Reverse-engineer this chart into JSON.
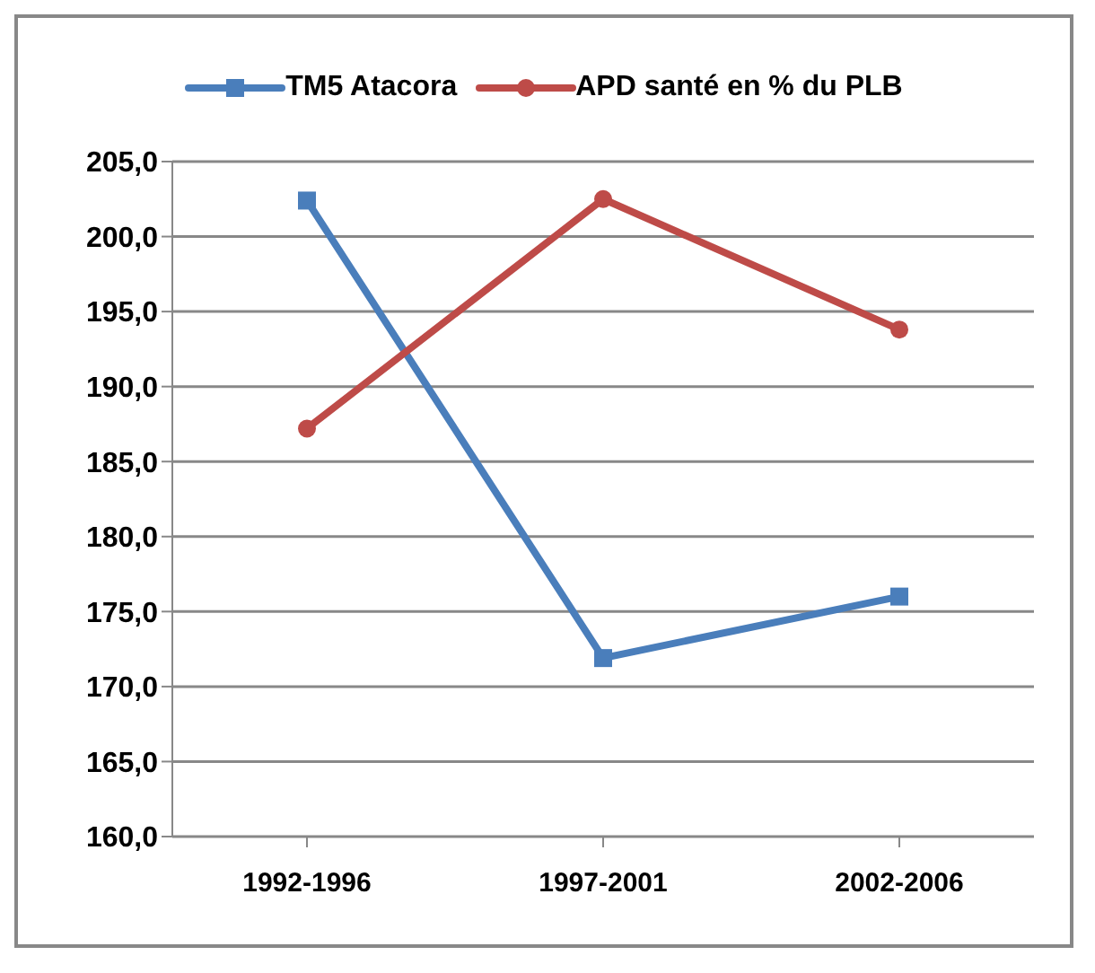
{
  "chart_data": {
    "type": "line",
    "categories": [
      "1992-1996",
      "1997-2001",
      "2002-2006"
    ],
    "series": [
      {
        "name": "TM5 Atacora",
        "color": "#4a7ebb",
        "marker": "square",
        "values": [
          202.4,
          171.9,
          176.0
        ]
      },
      {
        "name": "APD santé en % du PLB",
        "color": "#be4b48",
        "marker": "circle",
        "values": [
          187.2,
          202.5,
          193.8
        ]
      }
    ],
    "ylim": [
      160,
      205
    ],
    "yticks": [
      {
        "value": 160,
        "label": "160,0"
      },
      {
        "value": 165,
        "label": "165,0"
      },
      {
        "value": 170,
        "label": "170,0"
      },
      {
        "value": 175,
        "label": "175,0"
      },
      {
        "value": 180,
        "label": "180,0"
      },
      {
        "value": 185,
        "label": "185,0"
      },
      {
        "value": 190,
        "label": "190,0"
      },
      {
        "value": 195,
        "label": "195,0"
      },
      {
        "value": 200,
        "label": "200,0"
      },
      {
        "value": 205,
        "label": "205,0"
      }
    ],
    "grid": "y",
    "legend": "top",
    "line_style": "solid"
  }
}
